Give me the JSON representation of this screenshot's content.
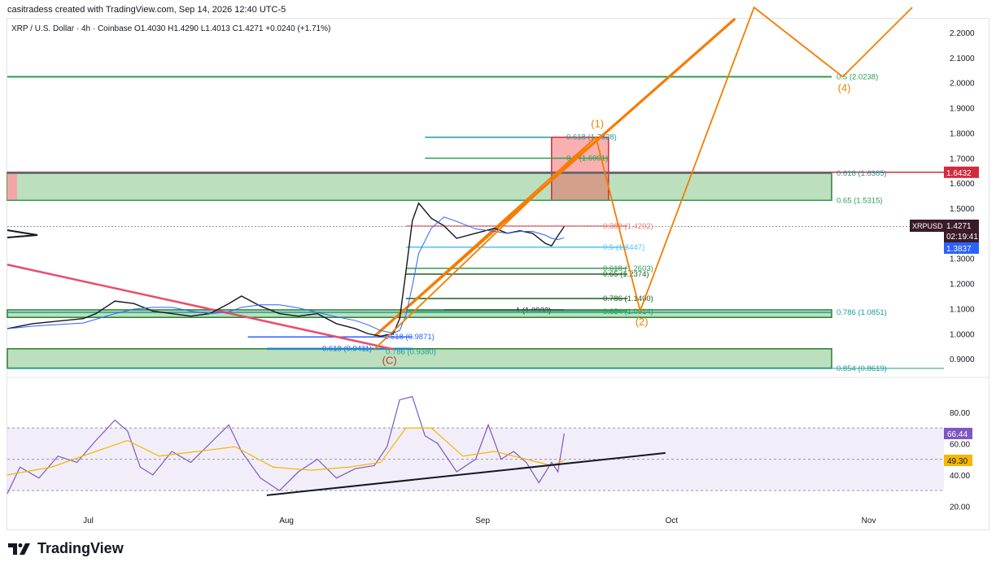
{
  "header": {
    "credit": "casitradess created with TradingView.com, Sep 14, 2026 12:40 UTC-5",
    "ohlc": "XRP / U.S. Dollar · 4h · Coinbase  O1.4030  H1.4290  L1.4013  C1.4271  +0.0240 (+1.71%)"
  },
  "footer": {
    "brand": "TradingView",
    "logo_icon": "tradingview-logo-icon"
  },
  "colors": {
    "accent_red": "#d12b3c",
    "fib_green": "#2e9e4f",
    "orange": "#f57c00",
    "rsi_line": "#7e57c2",
    "rsi_ma": "#f5b700",
    "blue": "#2962ff",
    "zone_green": "#a5d6a7"
  },
  "chart_data": [
    {
      "type": "candlestick",
      "title": "XRP / U.S. Dollar · 4h · Coinbase",
      "symbol": "XRPUSD",
      "ohlc": {
        "open": 1.403,
        "high": 1.429,
        "low": 1.4013,
        "close": 1.4271,
        "change": "+0.0240 (+1.71%)"
      },
      "y_axis": {
        "ticks": [
          "2.2000",
          "2.1000",
          "2.0000",
          "1.9000",
          "1.8000",
          "1.7000",
          "1.6000",
          "1.5000",
          "1.4000",
          "1.3000",
          "1.2000",
          "1.1000",
          "1.0000",
          "0.9000"
        ],
        "range": [
          0.855,
          2.255
        ],
        "scale": "linear"
      },
      "x_axis": {
        "ticks": [
          "Jul",
          "Aug",
          "Sep",
          "Oct",
          "Nov"
        ]
      },
      "price_labels": {
        "current": {
          "symbol": "XRPUSD",
          "price": "1.4271",
          "countdown": "02:19:41"
        },
        "upper": "1.6432",
        "lower": "1.3837"
      },
      "close_path": [
        [
          "Jun 18",
          1.02
        ],
        [
          "Jun 22",
          1.04
        ],
        [
          "Jun 26",
          1.05
        ],
        [
          "Jun 30",
          1.06
        ],
        [
          "Jul 2",
          1.08
        ],
        [
          "Jul 5",
          1.13
        ],
        [
          "Jul 8",
          1.12
        ],
        [
          "Jul 11",
          1.09
        ],
        [
          "Jul 14",
          1.08
        ],
        [
          "Jul 17",
          1.07
        ],
        [
          "Jul 20",
          1.08
        ],
        [
          "Jul 23",
          1.12
        ],
        [
          "Jul 25",
          1.15
        ],
        [
          "Jul 28",
          1.11
        ],
        [
          "Jul 31",
          1.08
        ],
        [
          "Aug 3",
          1.07
        ],
        [
          "Aug 6",
          1.08
        ],
        [
          "Aug 9",
          1.04
        ],
        [
          "Aug 12",
          1.02
        ],
        [
          "Aug 14",
          1.0
        ],
        [
          "Aug 16",
          0.99
        ],
        [
          "Aug 18",
          1.0
        ],
        [
          "Aug 19",
          1.06
        ],
        [
          "Aug 20",
          1.25
        ],
        [
          "Aug 21",
          1.45
        ],
        [
          "Aug 22",
          1.52
        ],
        [
          "Aug 24",
          1.46
        ],
        [
          "Aug 26",
          1.43
        ],
        [
          "Aug 28",
          1.38
        ],
        [
          "Aug 31",
          1.4
        ],
        [
          "Sep 3",
          1.42
        ],
        [
          "Sep 5",
          1.4
        ],
        [
          "Sep 7",
          1.41
        ],
        [
          "Sep 9",
          1.4
        ],
        [
          "Sep 11",
          1.36
        ],
        [
          "Sep 12",
          1.35
        ],
        [
          "Sep 13",
          1.39
        ],
        [
          "Sep 14",
          1.4271
        ]
      ],
      "levels": [
        {
          "label": "0.5 (2.0238)",
          "price": 2.0238,
          "color": "#2e9e4f"
        },
        {
          "label": "0.618 (1.7828)",
          "price": 1.7828,
          "color": "#1a9e98"
        },
        {
          "label": "0.5 (1.6991)",
          "price": 1.6991,
          "color": "#2e9e4f"
        },
        {
          "label": "0.618 (1.6385)",
          "price": 1.6385,
          "color": "#1a9e98"
        },
        {
          "label": "0.65 (1.5315)",
          "price": 1.5315,
          "color": "#2e9e4f"
        },
        {
          "label": "0.382 (1.4292)",
          "price": 1.4292,
          "color": "#ef7a7a"
        },
        {
          "label": "0.5 (1.3447)",
          "price": 1.3447,
          "color": "#4fc3f7"
        },
        {
          "label": "0.618 (1.2603)",
          "price": 1.2603,
          "color": "#2e9e4f"
        },
        {
          "label": "0.65 (1.2374)",
          "price": 1.2374,
          "color": "#1b5e20"
        },
        {
          "label": "0.786 (1.1400)",
          "price": 1.14,
          "color": "#1b5e20"
        },
        {
          "label": "1 (1.0933)",
          "price": 1.0933,
          "color": "#131722"
        },
        {
          "label": "0.854 (1.0914)",
          "price": 1.0914,
          "color": "#2e9e4f"
        },
        {
          "label": "0.786 (1.0851)",
          "price": 1.0851,
          "color": "#1a9e98"
        },
        {
          "label": "1.618 (0.9871)",
          "price": 0.9871,
          "color": "#2962ff"
        },
        {
          "label": "0.618 (0.9411)",
          "price": 0.9411,
          "color": "#2962ff"
        },
        {
          "label": "0.786 (0.9380)",
          "price": 0.938,
          "color": "#1a9e98"
        },
        {
          "label": "0.854 (0.8619)",
          "price": 0.8619,
          "color": "#1a9e98"
        }
      ],
      "zones": [
        {
          "name": "resistance",
          "from": 1.5315,
          "to": 1.6432
        },
        {
          "name": "support-upper",
          "from": 1.065,
          "to": 1.095
        },
        {
          "name": "support-lower",
          "from": 0.863,
          "to": 0.94
        }
      ],
      "target_box": {
        "from": 1.5315,
        "to": 1.7828
      },
      "elliott_waves": [
        {
          "label": "(C)",
          "date": "Aug 17",
          "price": 0.938
        },
        {
          "label": "(1)",
          "date": "Sep 19",
          "price": 1.7828
        },
        {
          "label": "(2)",
          "date": "Sep 26",
          "price": 1.0914
        },
        {
          "label": "(4)",
          "date": "Oct 28",
          "price": 2.0238
        }
      ],
      "wave_path": [
        [
          "Aug 15",
          0.938
        ],
        [
          "Sep 19",
          1.7828
        ],
        [
          "Sep 26",
          1.0914
        ],
        [
          "Oct 14",
          2.3
        ],
        [
          "Oct 28",
          2.0238
        ],
        [
          "Nov 8",
          2.3
        ]
      ],
      "trendlines": [
        {
          "name": "bull-channel-main",
          "from": [
            "Aug 15",
            0.99
          ],
          "to": [
            "Oct 11",
            2.255
          ]
        },
        {
          "name": "bull-channel-inner",
          "from": [
            "Aug 15",
            0.99
          ],
          "to": [
            "Sep 19",
            1.7828
          ]
        },
        {
          "name": "bear-trend",
          "from": [
            "Jun 18",
            1.275
          ],
          "to": [
            "Aug 18",
            0.938
          ]
        }
      ]
    },
    {
      "type": "line",
      "title": "RSI",
      "y_axis": {
        "ticks": [
          "80.00",
          "60.00",
          "40.00",
          "20.00"
        ],
        "range": [
          15,
          95
        ],
        "bands": [
          30,
          70
        ]
      },
      "value_labels": {
        "rsi": "66.44",
        "ma": "49.30"
      },
      "series": [
        {
          "values": [
            [
              "Jun 18",
              28
            ],
            [
              "Jun 20",
              45
            ],
            [
              "Jun 23",
              38
            ],
            [
              "Jun 26",
              52
            ],
            [
              "Jun 29",
              48
            ],
            [
              "Jul 2",
              62
            ],
            [
              "Jul 5",
              75
            ],
            [
              "Jul 7",
              68
            ],
            [
              "Jul 9",
              45
            ],
            [
              "Jul 11",
              40
            ],
            [
              "Jul 14",
              55
            ],
            [
              "Jul 17",
              48
            ],
            [
              "Jul 20",
              60
            ],
            [
              "Jul 23",
              72
            ],
            [
              "Jul 25",
              55
            ],
            [
              "Jul 28",
              38
            ],
            [
              "Jul 31",
              30
            ],
            [
              "Aug 3",
              42
            ],
            [
              "Aug 6",
              50
            ],
            [
              "Aug 9",
              38
            ],
            [
              "Aug 12",
              44
            ],
            [
              "Aug 15",
              46
            ],
            [
              "Aug 17",
              58
            ],
            [
              "Aug 19",
              88
            ],
            [
              "Aug 21",
              90
            ],
            [
              "Aug 23",
              65
            ],
            [
              "Aug 25",
              60
            ],
            [
              "Aug 28",
              42
            ],
            [
              "Aug 31",
              50
            ],
            [
              "Sep 2",
              72
            ],
            [
              "Sep 4",
              50
            ],
            [
              "Sep 6",
              55
            ],
            [
              "Sep 8",
              48
            ],
            [
              "Sep 10",
              35
            ],
            [
              "Sep 12",
              48
            ],
            [
              "Sep 13",
              42
            ],
            [
              "Sep 14",
              66.44
            ]
          ]
        },
        {
          "values": [
            [
              "Jun 18",
              40
            ],
            [
              "Jun 25",
              45
            ],
            [
              "Jul 2",
              55
            ],
            [
              "Jul 7",
              62
            ],
            [
              "Jul 12",
              52
            ],
            [
              "Jul 18",
              55
            ],
            [
              "Jul 24",
              58
            ],
            [
              "Jul 30",
              45
            ],
            [
              "Aug 5",
              43
            ],
            [
              "Aug 11",
              45
            ],
            [
              "Aug 16",
              48
            ],
            [
              "Aug 20",
              70
            ],
            [
              "Aug 24",
              70
            ],
            [
              "Aug 29",
              52
            ],
            [
              "Sep 3",
              55
            ],
            [
              "Sep 8",
              50
            ],
            [
              "Sep 12",
              46
            ],
            [
              "Sep 14",
              49.3
            ]
          ]
        }
      ],
      "trendline": {
        "from": [
          "Jul 29",
          27
        ],
        "to": [
          "Sep 30",
          54
        ]
      }
    }
  ]
}
